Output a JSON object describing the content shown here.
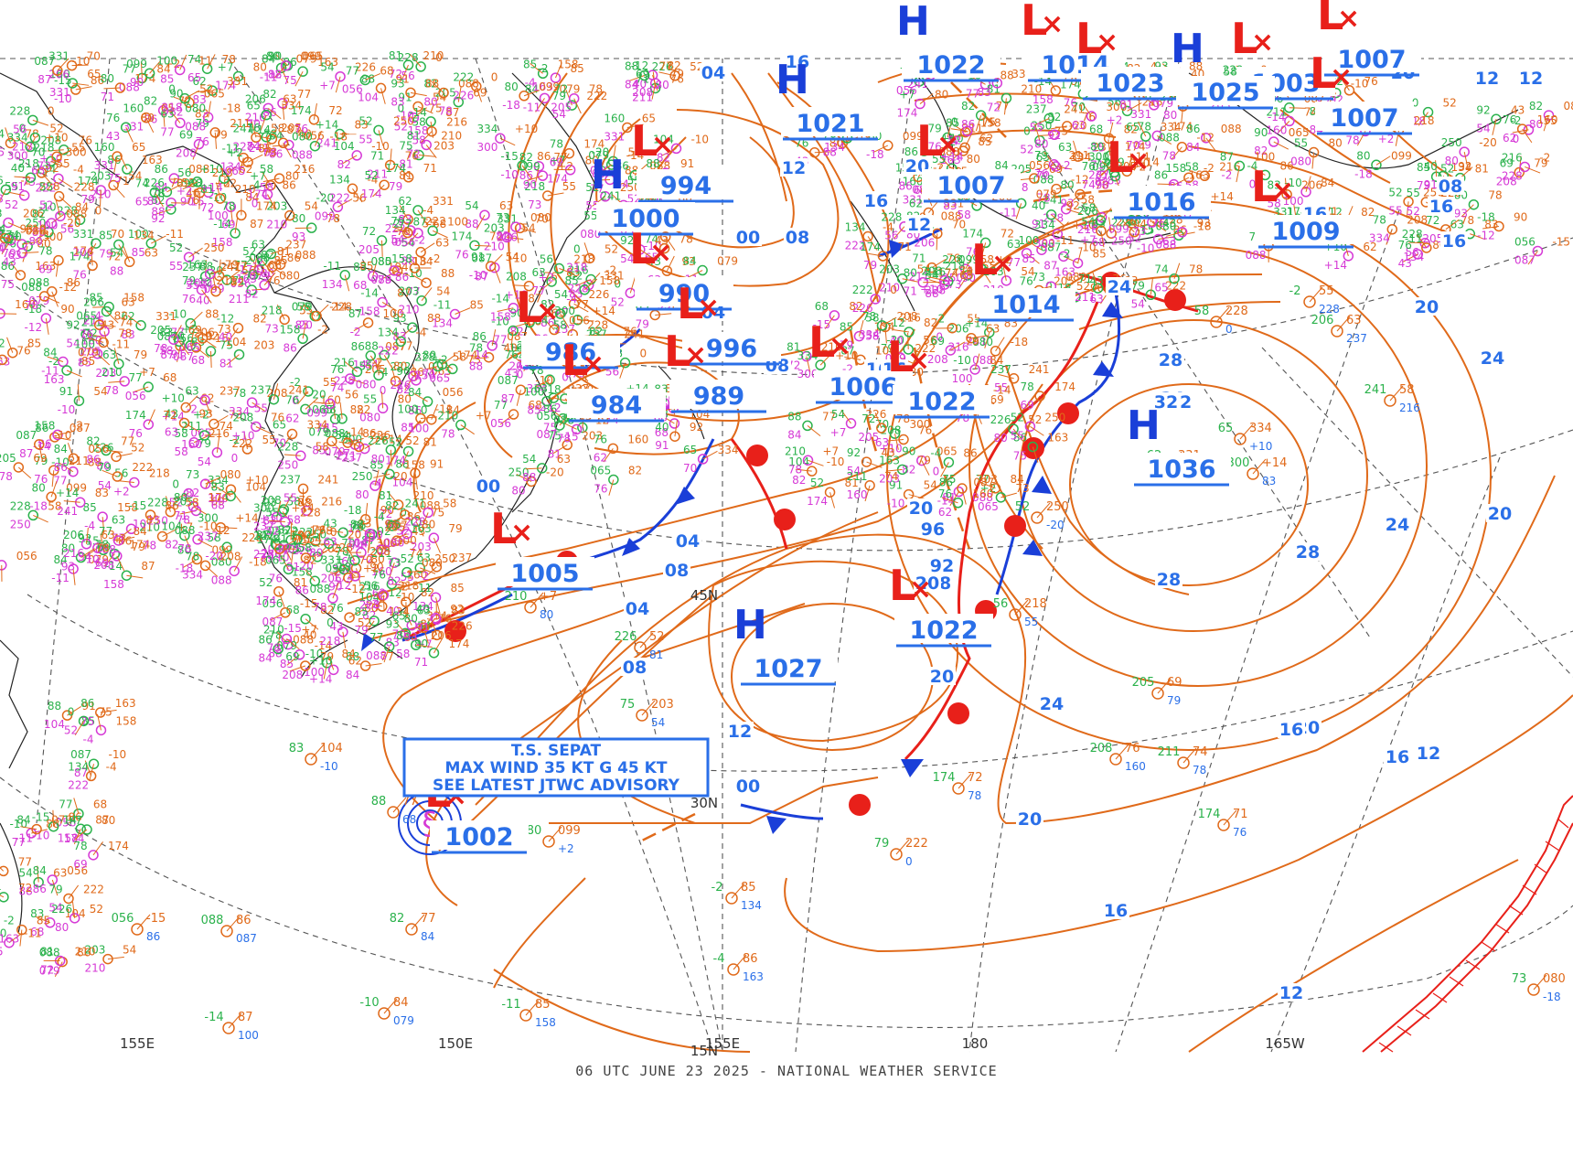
{
  "footer": "06 UTC JUNE 23 2025 - NATIONAL WEATHER SERVICE",
  "colors": {
    "isobar": "#e06a1a",
    "pressure_label": "#2a6fe8",
    "low": "#e8201a",
    "high": "#1a3fd8",
    "front_cold": "#1a3fd8",
    "front_warm": "#e8201a",
    "occluded": "#9b30f0",
    "coast": "#222222",
    "grid": "#555555",
    "obs_green": "#2bb24c",
    "obs_magenta": "#d63ad6",
    "obs_blue": "#2a6fe8",
    "obs_orange": "#e06a1a",
    "hazard": "#e8201a"
  },
  "grid_labels": [
    "155E",
    "150E",
    "155E",
    "180",
    "165W",
    "15N",
    "30N",
    "45N"
  ],
  "isobar_labels": [
    "04",
    "16",
    "20",
    "12",
    "16",
    "12",
    "20",
    "24",
    "28",
    "32",
    "28",
    "32",
    "28",
    "24",
    "20",
    "24",
    "20",
    "16",
    "12",
    "16",
    "20",
    "24",
    "20",
    "16",
    "12",
    "08",
    "04",
    "00",
    "96",
    "92",
    "88",
    "00",
    "04",
    "08",
    "12",
    "20",
    "24",
    "16",
    "16",
    "20",
    "12",
    "16",
    "08",
    "08",
    "12",
    "16",
    "20",
    "24",
    "12",
    "20",
    "16",
    "04",
    "00",
    "08",
    "16",
    "20"
  ],
  "systems": [
    {
      "type": "L",
      "pressure": "994"
    },
    {
      "type": "H",
      "pressure": "1000"
    },
    {
      "type": "L",
      "pressure": "990"
    },
    {
      "type": "L",
      "pressure": "986"
    },
    {
      "type": "L",
      "pressure": "984"
    },
    {
      "type": "L",
      "pressure": "996"
    },
    {
      "type": "L",
      "pressure": "989"
    },
    {
      "type": "L",
      "pressure": "1006"
    },
    {
      "type": "L",
      "pressure": "1005"
    },
    {
      "type": "H",
      "pressure": "1021"
    },
    {
      "type": "L",
      "pressure": "1007"
    },
    {
      "type": "L",
      "pressure": "1014"
    },
    {
      "type": "L",
      "pressure": "1022"
    },
    {
      "type": "H",
      "pressure": "1036"
    },
    {
      "type": "H",
      "pressure": "1027"
    },
    {
      "type": "L",
      "pressure": "1022"
    },
    {
      "type": "L",
      "pressure": "1002"
    },
    {
      "type": "H",
      "pressure": "1022"
    },
    {
      "type": "L",
      "pressure": "1014"
    },
    {
      "type": "L",
      "pressure": "1023"
    },
    {
      "type": "L",
      "pressure": "1016"
    },
    {
      "type": "L",
      "pressure": "1003"
    },
    {
      "type": "L",
      "pressure": "1007"
    },
    {
      "type": "L",
      "pressure": "1007"
    },
    {
      "type": "L",
      "pressure": "1009"
    },
    {
      "type": "H",
      "pressure": "1025"
    }
  ],
  "tropical_storm": {
    "line1": "T.S. SEPAT",
    "line2": "MAX WIND 35 KT G 45 KT",
    "line3": "SEE LATEST JTWC ADVISORY"
  },
  "obs_numbers": [
    "83",
    "104",
    "-10",
    "88",
    "77",
    "68",
    "82",
    "77",
    "84",
    "056",
    "-15",
    "86",
    "088",
    "86",
    "087",
    "-10",
    "84",
    "079",
    "-14",
    "87",
    "100",
    "-11",
    "85",
    "158",
    "-2",
    "85",
    "134",
    "-4",
    "86",
    "163",
    "79",
    "222",
    "0",
    "75",
    "203",
    "54",
    "226",
    "52",
    "81",
    "210",
    "+7",
    "80",
    "174",
    "72",
    "78",
    "174",
    "71",
    "76",
    "205",
    "69",
    "79",
    "211",
    "74",
    "78",
    "208",
    "76",
    "160",
    "65",
    "334",
    "+10",
    "62",
    "331",
    "70",
    "300",
    "+14",
    "83",
    "206",
    "63",
    "237",
    "241",
    "58",
    "216",
    "-2",
    "55",
    "228",
    "58",
    "228",
    "0",
    "52",
    "250",
    "-20",
    "56",
    "218",
    "55",
    "80",
    "099",
    "+2",
    "73",
    "080",
    "-18",
    "90",
    "065",
    "82",
    "088",
    "-12",
    "82",
    "76",
    "80",
    "78",
    "40",
    "92",
    "43",
    "93",
    "88",
    "91",
    "54",
    "63"
  ]
}
